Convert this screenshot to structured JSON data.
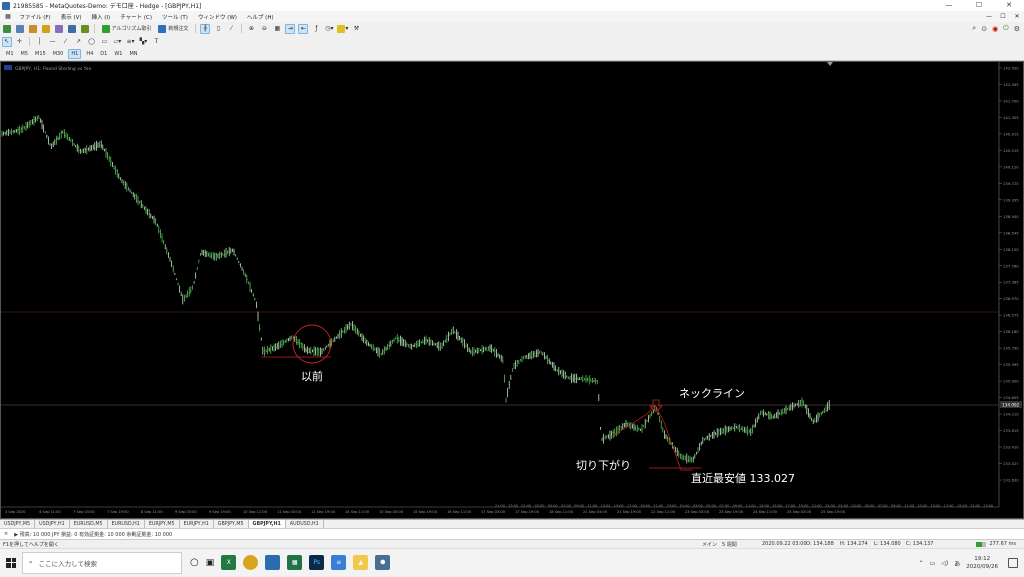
{
  "window": {
    "title": "21985585 - MetaQuotes-Demo: デモ口座 - Hedge - [GBPJPY,H1]",
    "controls": [
      "—",
      "☐",
      "✕"
    ]
  },
  "menu": {
    "items": [
      "ファイル (F)",
      "表示 (V)",
      "挿入 (I)",
      "チャート (C)",
      "ツール (T)",
      "ウィンドウ (W)",
      "ヘルプ (H)"
    ]
  },
  "toolbar": {
    "algo_label": "アルゴリズム取引",
    "new_order_label": "新規注文",
    "timeframes": [
      "M1",
      "M5",
      "M15",
      "M30",
      "H1",
      "H4",
      "D1",
      "W1",
      "MN"
    ],
    "active_timeframe": "H1"
  },
  "chart": {
    "header": "GBPJPY, H1:  Pound Sterling vs Yen",
    "price_scale": [
      "142.500",
      "142.095",
      "141.700",
      "141.305",
      "140.915",
      "140.515",
      "140.120",
      "139.725",
      "139.335",
      "138.940",
      "138.545",
      "138.150",
      "137.760",
      "137.365",
      "136.970",
      "136.575",
      "136.180",
      "135.790",
      "135.395",
      "135.000",
      "134.605",
      "134.210",
      "133.815",
      "133.420",
      "133.027",
      "132.630"
    ],
    "current_price": "134.092",
    "time_labels": [
      "3 Sep 2020",
      "4 Sep 11:00",
      "7 Sep 03:00",
      "7 Sep 19:00",
      "8 Sep 11:00",
      "9 Sep 03:00",
      "9 Sep 19:00",
      "10 Sep 11:00",
      "11 Sep 03:00",
      "11 Sep 19:00",
      "14 Sep 11:00",
      "15 Sep 03:00",
      "15 Sep 19:00",
      "16 Sep 11:00",
      "17 Sep 03:00",
      "17 Sep 19:00",
      "18 Sep 11:00",
      "21 Sep 03:00",
      "21 Sep 19:00",
      "22 Sep 11:00",
      "23 Sep 03:00",
      "23 Sep 19:00",
      "24 Sep 11:00",
      "25 Sep 03:00",
      "25 Sep 19:00"
    ],
    "future_time_labels": [
      "21:00",
      "23:00",
      "01:00",
      "03:00",
      "05:00",
      "07:00",
      "09:00",
      "11:00",
      "13:00",
      "15:00",
      "17:00",
      "19:00",
      "21:00",
      "23:00",
      "01:00",
      "03:00",
      "05:00",
      "07:00",
      "09:00",
      "11:00",
      "13:00",
      "15:00",
      "17:00",
      "19:00",
      "21:00",
      "23:00",
      "01:00",
      "03:00",
      "05:00",
      "07:00",
      "09:00",
      "11:00",
      "13:00",
      "15:00",
      "17:00",
      "19:00",
      "21:00",
      "23:00"
    ],
    "annotations": {
      "before": "以前",
      "neckline": "ネックライン",
      "lower_low": "切り下がり",
      "recent_low": "直近最安値 133.027"
    }
  },
  "tabs": {
    "items": [
      "USDJPY,M5",
      "USDJPY,H1",
      "EURUSD,M5",
      "EURUSD,H1",
      "EURJPY,M5",
      "EURJPY,H1",
      "GBPJPY,M5",
      "GBPJPY,H1",
      "AUDUSD,H1"
    ],
    "active": "GBPJPY,H1"
  },
  "terminal": {
    "close": "×",
    "line": "▶ 残高: 10 000 JPY  損益: 0  有効証拠金: 10 000  余剰証拠金: 10 000"
  },
  "status": {
    "help": "F1を押してヘルプを開く",
    "profile": "メイン",
    "view": "5 週間",
    "datetime": "2020.09.22 03:00",
    "open": "O: 134.188",
    "high": "H: 134.274",
    "low": "L: 134.080",
    "close": "C: 134.137",
    "ping": "277.67 ms"
  },
  "taskbar": {
    "search_placeholder": "ここに入力して検索",
    "ime": "あ",
    "time": "19:12",
    "date": "2020/09/26",
    "apps": [
      "chrome",
      "excel",
      "photos",
      "photoshop",
      "folder",
      "edge",
      "drive",
      "mt5"
    ]
  }
}
